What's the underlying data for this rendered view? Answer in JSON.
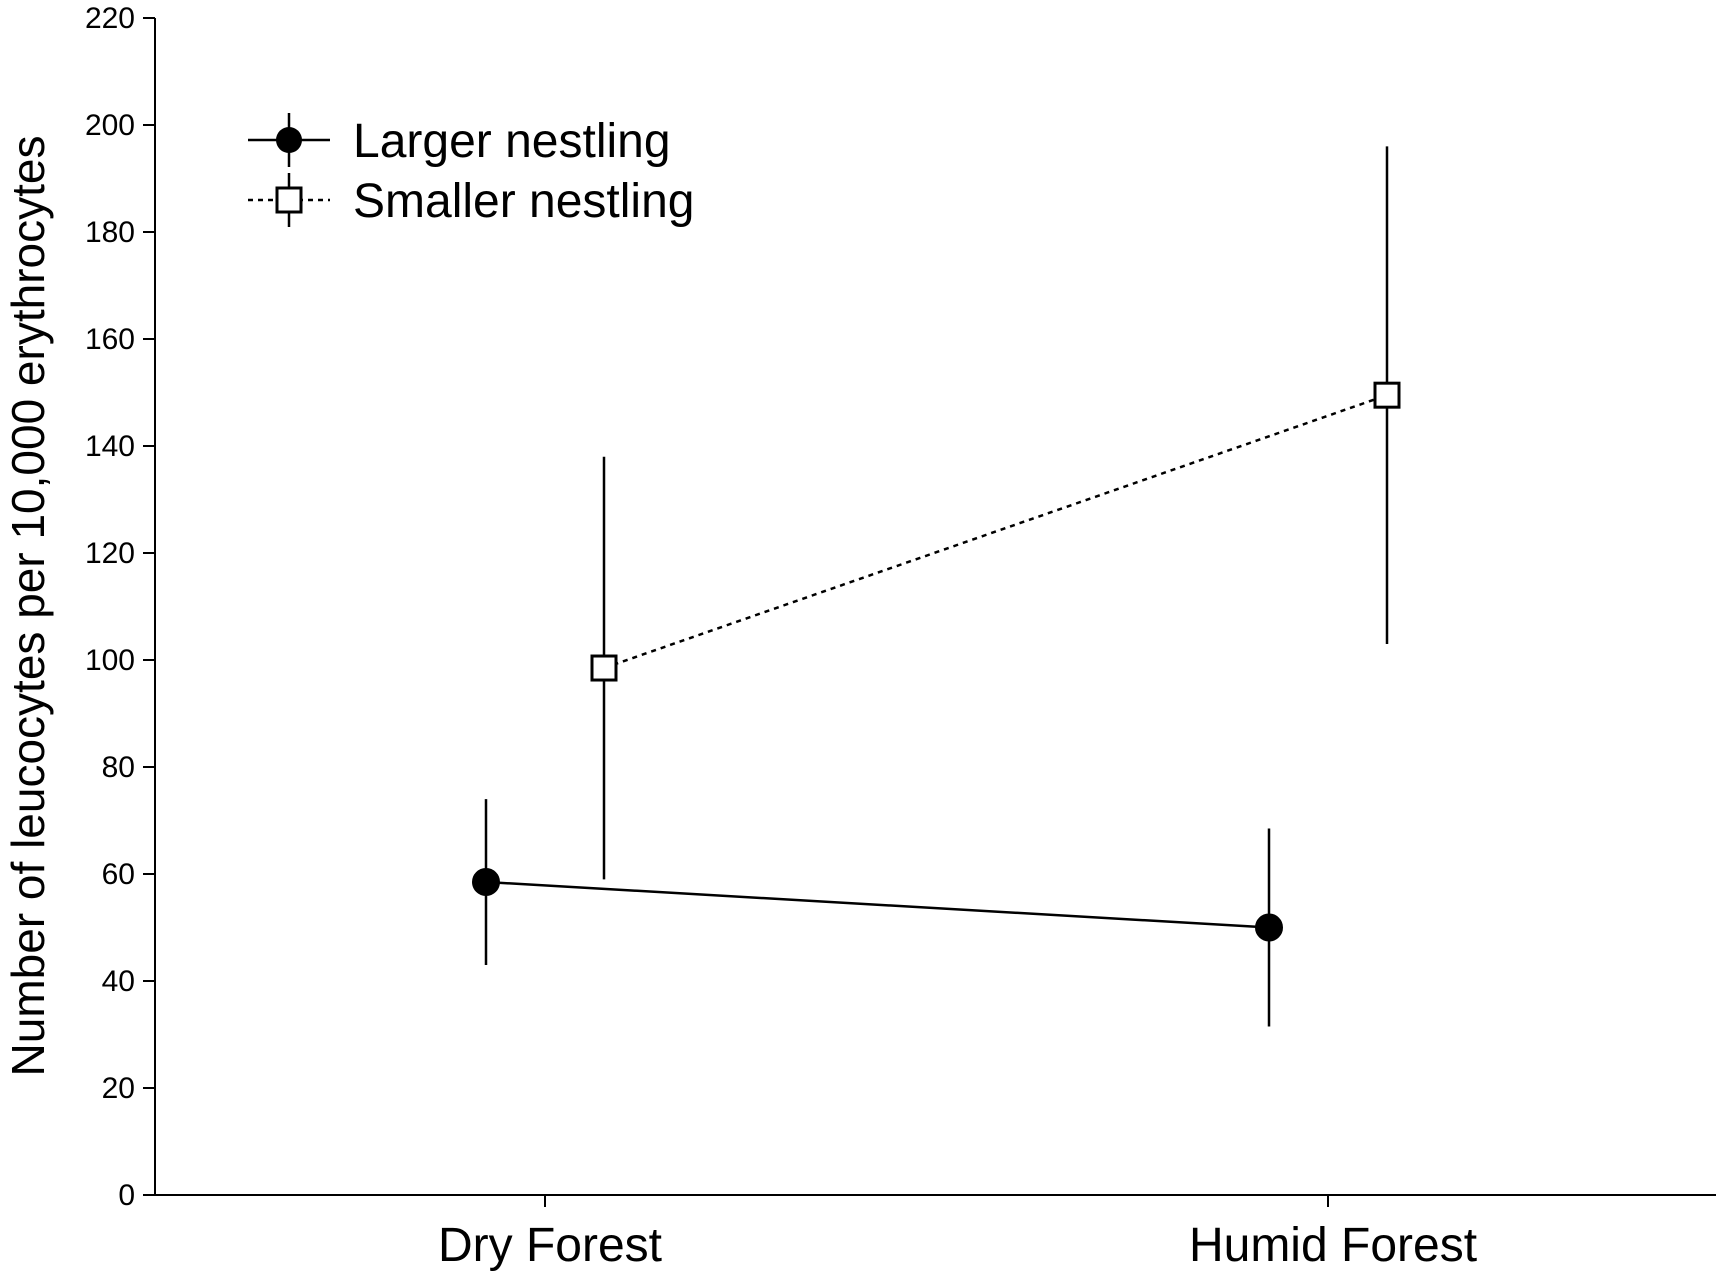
{
  "chart_data": {
    "type": "line",
    "categories": [
      "Dry Forest",
      "Humid Forest"
    ],
    "ylabel": "Number of leucocytes per 10,000 erythrocytes",
    "xlabel": "",
    "ylim": [
      0,
      220
    ],
    "yticks": [
      0,
      20,
      40,
      60,
      80,
      100,
      120,
      140,
      160,
      180,
      200,
      220
    ],
    "legend_position": "top-left",
    "series": [
      {
        "name": "Larger nestling",
        "marker": "filled-circle",
        "line_style": "solid",
        "color": "#000000",
        "values": [
          58.5,
          50
        ],
        "error_low": [
          43,
          31.5
        ],
        "error_high": [
          74,
          68.5
        ]
      },
      {
        "name": "Smaller nestling",
        "marker": "open-square",
        "line_style": "dotted",
        "color": "#000000",
        "values": [
          98.5,
          149.5
        ],
        "error_low": [
          59,
          103
        ],
        "error_high": [
          138,
          196
        ]
      }
    ]
  }
}
